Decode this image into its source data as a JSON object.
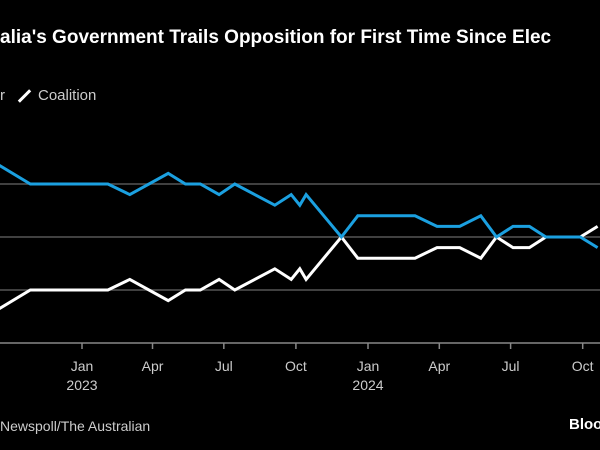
{
  "title": "alia's Government Trails Opposition for First Time Since Elec",
  "legend": {
    "first_label_fragment": "r",
    "second_label": "Coalition"
  },
  "source": "Newspoll/The Australian",
  "logo": "Bloo",
  "chart_data": {
    "type": "line",
    "title": "alia's Government Trails Opposition for First Time Since Elec",
    "xlabel": "",
    "ylabel": "",
    "ylim": [
      43.5,
      58
    ],
    "gridlines": [
      45,
      50,
      55
    ],
    "grid": true,
    "legend_position": "top-left",
    "x_ticks": [
      {
        "date": "2023-01-01",
        "label": "Jan",
        "year": "2023"
      },
      {
        "date": "2023-04-01",
        "label": "Apr",
        "year": ""
      },
      {
        "date": "2023-07-01",
        "label": "Jul",
        "year": ""
      },
      {
        "date": "2023-10-01",
        "label": "Oct",
        "year": ""
      },
      {
        "date": "2024-01-01",
        "label": "Jan",
        "year": "2024"
      },
      {
        "date": "2024-04-01",
        "label": "Apr",
        "year": ""
      },
      {
        "date": "2024-07-01",
        "label": "Jul",
        "year": ""
      },
      {
        "date": "2024-10-01",
        "label": "Oct",
        "year": ""
      }
    ],
    "x": [
      "2022-09-12",
      "2022-10-27",
      "2023-02-03",
      "2023-03-03",
      "2023-04-21",
      "2023-05-13",
      "2023-06-01",
      "2023-06-25",
      "2023-07-15",
      "2023-09-04",
      "2023-09-25",
      "2023-10-06",
      "2023-10-14",
      "2023-11-28",
      "2023-12-19",
      "2024-03-01",
      "2024-03-29",
      "2024-04-27",
      "2024-05-24",
      "2024-06-13",
      "2024-07-04",
      "2024-07-25",
      "2024-08-15",
      "2024-09-28",
      "2024-10-20"
    ],
    "series": [
      {
        "name": "r",
        "color": "#1ba0e0",
        "values": [
          57,
          55,
          55,
          54,
          56,
          55,
          55,
          54,
          55,
          53,
          54,
          53,
          54,
          50,
          52,
          52,
          51,
          51,
          52,
          50,
          51,
          51,
          50,
          50,
          49
        ]
      },
      {
        "name": "Coalition",
        "color": "#ffffff",
        "values": [
          43,
          45,
          45,
          46,
          44,
          45,
          45,
          46,
          45,
          47,
          46,
          47,
          46,
          50,
          48,
          48,
          49,
          49,
          48,
          50,
          49,
          49,
          50,
          50,
          51
        ]
      }
    ]
  }
}
